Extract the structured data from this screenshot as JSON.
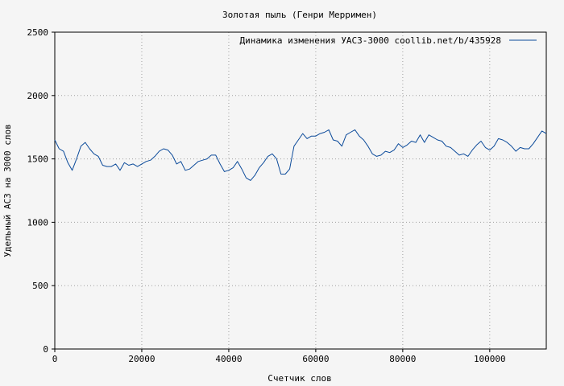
{
  "chart_data": {
    "type": "line",
    "title": "Золотая пыль (Генри Мерримен)",
    "xlabel": "Счетчик слов",
    "ylabel": "Удельный АСЗ на 3000 слов",
    "xlim": [
      0,
      113000
    ],
    "ylim": [
      0,
      2500
    ],
    "x_ticks": [
      0,
      20000,
      40000,
      60000,
      80000,
      100000
    ],
    "x_tick_labels": [
      "0",
      "20000",
      "40000",
      "60000",
      "80000",
      "100000"
    ],
    "y_ticks": [
      0,
      500,
      1000,
      1500,
      2000,
      2500
    ],
    "y_tick_labels": [
      "0",
      "500",
      "1000",
      "1500",
      "2000",
      "2500"
    ],
    "grid": true,
    "legend_position": "top-right",
    "colors": {
      "line": "#0b4a9a",
      "background": "#f5f5f5",
      "grid": "#a0a0a0"
    },
    "series": [
      {
        "name": "Динамика изменения УАСЗ-3000  coollib.net/b/435928",
        "x": [
          0,
          1000,
          2000,
          3000,
          4000,
          5000,
          6000,
          7000,
          8000,
          9000,
          10000,
          11000,
          12000,
          13000,
          14000,
          15000,
          16000,
          17000,
          18000,
          19000,
          20000,
          21000,
          22000,
          23000,
          24000,
          25000,
          26000,
          27000,
          28000,
          29000,
          30000,
          31000,
          32000,
          33000,
          34000,
          35000,
          36000,
          37000,
          38000,
          39000,
          40000,
          41000,
          42000,
          43000,
          44000,
          45000,
          46000,
          47000,
          48000,
          49000,
          50000,
          51000,
          52000,
          53000,
          54000,
          55000,
          56000,
          57000,
          58000,
          59000,
          60000,
          61000,
          62000,
          63000,
          64000,
          65000,
          66000,
          67000,
          68000,
          69000,
          70000,
          71000,
          72000,
          73000,
          74000,
          75000,
          76000,
          77000,
          78000,
          79000,
          80000,
          81000,
          82000,
          83000,
          84000,
          85000,
          86000,
          87000,
          88000,
          89000,
          90000,
          91000,
          92000,
          93000,
          94000,
          95000,
          96000,
          97000,
          98000,
          99000,
          100000,
          101000,
          102000,
          103000,
          104000,
          105000,
          106000,
          107000,
          108000,
          109000,
          110000,
          111000,
          112000,
          113000
        ],
        "y": [
          1650,
          1580,
          1560,
          1470,
          1410,
          1500,
          1600,
          1630,
          1580,
          1540,
          1520,
          1450,
          1440,
          1440,
          1460,
          1410,
          1470,
          1450,
          1460,
          1440,
          1460,
          1480,
          1490,
          1520,
          1560,
          1580,
          1570,
          1530,
          1460,
          1480,
          1410,
          1420,
          1450,
          1480,
          1490,
          1500,
          1530,
          1530,
          1460,
          1400,
          1410,
          1430,
          1480,
          1420,
          1350,
          1330,
          1370,
          1430,
          1470,
          1520,
          1540,
          1500,
          1380,
          1380,
          1420,
          1600,
          1650,
          1700,
          1660,
          1680,
          1680,
          1700,
          1710,
          1730,
          1650,
          1640,
          1600,
          1690,
          1710,
          1730,
          1680,
          1650,
          1600,
          1540,
          1520,
          1530,
          1560,
          1550,
          1570,
          1620,
          1590,
          1610,
          1640,
          1630,
          1690,
          1630,
          1690,
          1670,
          1650,
          1640,
          1600,
          1590,
          1560,
          1530,
          1540,
          1520,
          1570,
          1610,
          1640,
          1590,
          1570,
          1600,
          1660,
          1650,
          1630,
          1600,
          1560,
          1590,
          1580,
          1580,
          1620,
          1670,
          1720,
          1700
        ]
      }
    ]
  }
}
